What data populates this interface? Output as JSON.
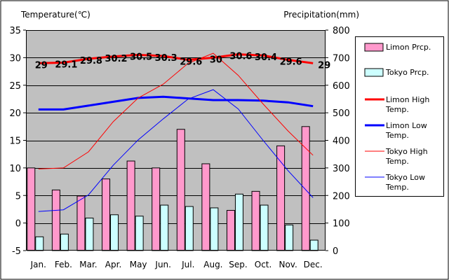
{
  "chart_data": {
    "type": "bar+line",
    "categories": [
      "Jan.",
      "Feb.",
      "Mar.",
      "Apr.",
      "May",
      "Jun.",
      "Jul.",
      "Aug.",
      "Sep.",
      "Oct.",
      "Nov.",
      "Dec."
    ],
    "left_axis": {
      "label": "Temperature(℃)",
      "min": -5,
      "max": 35,
      "ticks": [
        35,
        30,
        25,
        20,
        15,
        10,
        5,
        0,
        -5
      ]
    },
    "right_axis": {
      "label": "Precipitation(mm)",
      "min": 0,
      "max": 800,
      "ticks": [
        800,
        700,
        600,
        500,
        400,
        300,
        200,
        100,
        0
      ]
    },
    "plot_background": "#c0c0c0",
    "series": [
      {
        "name": "Limon Prcp.",
        "kind": "bar",
        "axis": "right",
        "color": "#ff99cc",
        "values": [
          300,
          220,
          198,
          260,
          325,
          300,
          440,
          315,
          146,
          215,
          380,
          450
        ]
      },
      {
        "name": "Tokyo Prcp.",
        "kind": "bar",
        "axis": "right",
        "color": "#ccffff",
        "values": [
          50,
          60,
          118,
          130,
          125,
          165,
          160,
          155,
          205,
          165,
          93,
          38
        ]
      },
      {
        "name": "Limon High Temp.",
        "kind": "line",
        "axis": "left",
        "color": "#ff0000",
        "width": 3,
        "values": [
          29.0,
          29.1,
          29.8,
          30.2,
          30.5,
          30.3,
          29.6,
          30.0,
          30.6,
          30.4,
          29.6,
          29.0
        ],
        "labels": [
          "29",
          "29.1",
          "29.8",
          "30.2",
          "30.5",
          "30.3",
          "29.6",
          "30",
          "30.6",
          "30.4",
          "29.6",
          "29"
        ]
      },
      {
        "name": "Limon Low Temp.",
        "kind": "line",
        "axis": "left",
        "color": "#0000ff",
        "width": 3,
        "values": [
          20.6,
          20.6,
          21.3,
          22.0,
          22.7,
          22.9,
          22.6,
          22.3,
          22.3,
          22.2,
          21.9,
          21.2
        ]
      },
      {
        "name": "Tokyo High Temp.",
        "kind": "line",
        "axis": "left",
        "color": "#ff0000",
        "width": 1,
        "values": [
          9.8,
          10.0,
          12.9,
          18.4,
          22.7,
          25.2,
          29.0,
          30.8,
          26.8,
          21.6,
          16.7,
          12.3
        ]
      },
      {
        "name": "Tokyo Low Temp.",
        "kind": "line",
        "axis": "left",
        "color": "#0000ff",
        "width": 1,
        "values": [
          2.1,
          2.4,
          5.1,
          10.5,
          15.1,
          18.9,
          22.5,
          24.2,
          20.7,
          15.0,
          9.5,
          4.6
        ]
      }
    ],
    "legend": {
      "position": "right",
      "entries": [
        "Limon Prcp.",
        "Tokyo Prcp.",
        "Limon High Temp.",
        "Limon Low Temp.",
        "Tokyo High Temp.",
        "Tokyo Low Temp."
      ]
    }
  }
}
